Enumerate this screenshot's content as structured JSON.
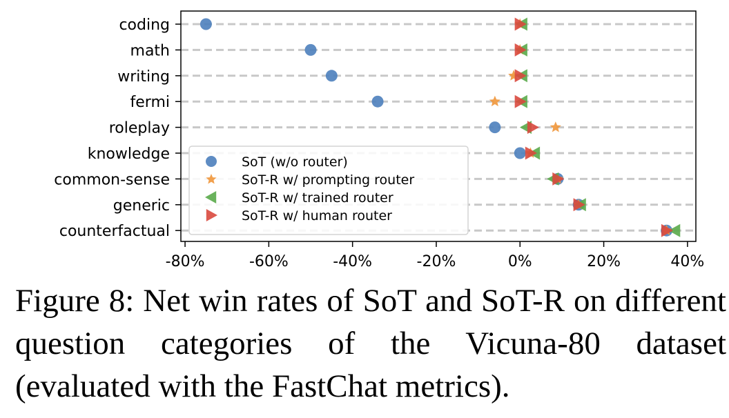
{
  "chart_data": {
    "type": "scatter",
    "categories": [
      "coding",
      "math",
      "writing",
      "fermi",
      "roleplay",
      "knowledge",
      "common-sense",
      "generic",
      "counterfactual"
    ],
    "x_tick_labels": [
      "-80%",
      "-60%",
      "-40%",
      "-20%",
      "0%",
      "20%",
      "40%"
    ],
    "x_ticks": [
      -80,
      -60,
      -40,
      -20,
      0,
      20,
      40
    ],
    "xlim": [
      -81,
      42
    ],
    "grid": "horizontal dashed",
    "legend_position": "lower-left",
    "series": [
      {
        "name": "SoT (w/o router)",
        "marker": "circle",
        "color": "#4c7fbd",
        "values": [
          -75,
          -50,
          -45,
          -34,
          -6,
          0,
          9,
          14,
          35
        ]
      },
      {
        "name": "SoT-R w/ prompting router",
        "marker": "star",
        "color": "#f0963a",
        "values": [
          0,
          0,
          -1.5,
          -6,
          8.5,
          2.5,
          9,
          14,
          35
        ]
      },
      {
        "name": "SoT-R w/ trained router",
        "marker": "triangle-left",
        "color": "#5aaa4a",
        "values": [
          0.5,
          0.5,
          0.5,
          0.5,
          1.5,
          3.5,
          8,
          14.5,
          37
        ]
      },
      {
        "name": "SoT-R w/ human router",
        "marker": "triangle-right",
        "color": "#d9493e",
        "values": [
          0,
          0,
          0,
          0,
          3,
          2.5,
          9,
          14,
          35
        ]
      }
    ]
  },
  "caption": "Figure 8: Net win rates of SoT and SoT-R on different question categories of the Vicuna-80 dataset (evaluated with the FastChat metrics)."
}
